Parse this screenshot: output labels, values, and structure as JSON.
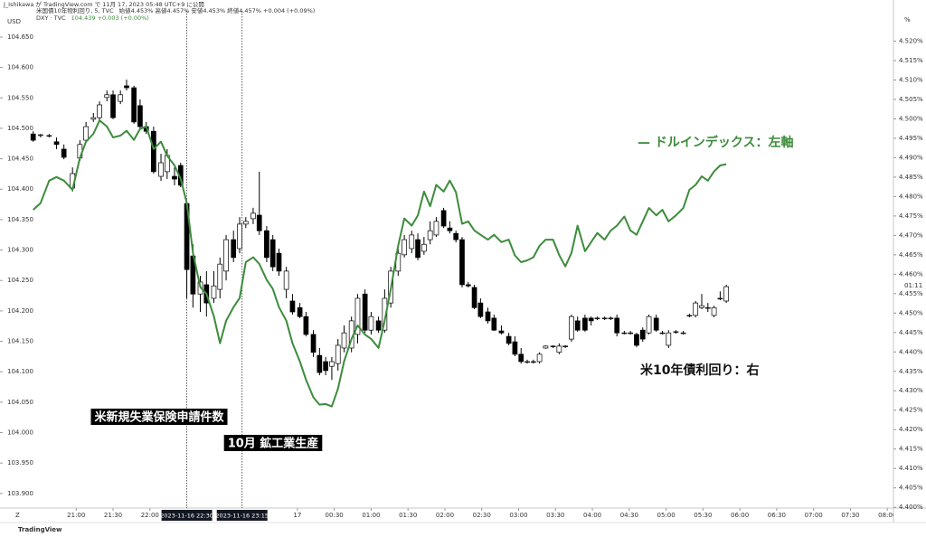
{
  "chart_data": {
    "type": "candlestick",
    "header": "J_Ishikawa が TradingView.com で 11月 17, 2023 05:48 UTC+9 に公開",
    "y_unit": "USD",
    "y2_unit": "%",
    "countdown": "01:11",
    "footer": "TradingView",
    "annotations": [
      {
        "text": "米新規失業保険申請件数",
        "style": "box"
      },
      {
        "text": "10月 鉱工業生産",
        "style": "box"
      },
      {
        "text": "— ドルインデックス：左軸",
        "style": "green"
      },
      {
        "text": "米10年債利回り：右",
        "style": "plain"
      }
    ],
    "markers": [
      {
        "x": 1350,
        "label": "2023-11-16  22:30"
      },
      {
        "x": 1395,
        "label": "2023-11-16  23:15"
      }
    ],
    "xlim": [
      1198,
      1925
    ],
    "xticks": [
      {
        "value": 1260,
        "label": "21:00"
      },
      {
        "value": 1290,
        "label": "21:30"
      },
      {
        "value": 1320,
        "label": "22:00"
      },
      {
        "value": 1440,
        "label": "17"
      },
      {
        "value": 1470,
        "label": "00:30"
      },
      {
        "value": 1500,
        "label": "01:00"
      },
      {
        "value": 1530,
        "label": "01:30"
      },
      {
        "value": 1560,
        "label": "02:00"
      },
      {
        "value": 1590,
        "label": "02:30"
      },
      {
        "value": 1620,
        "label": "03:00"
      },
      {
        "value": 1650,
        "label": "03:30"
      },
      {
        "value": 1680,
        "label": "04:00"
      },
      {
        "value": 1710,
        "label": "04:30"
      },
      {
        "value": 1740,
        "label": "05:00"
      },
      {
        "value": 1770,
        "label": "05:30"
      },
      {
        "value": 1800,
        "label": "06:00"
      },
      {
        "value": 1830,
        "label": "06:30"
      },
      {
        "value": 1860,
        "label": "07:00"
      },
      {
        "value": 1890,
        "label": "07:30"
      },
      {
        "value": 1920,
        "label": "08:00"
      }
    ],
    "ylim": [
      103.876,
      104.693
    ],
    "yticks": [
      {
        "value": 103.9,
        "label": "103.900"
      },
      {
        "value": 103.95,
        "label": "103.950"
      },
      {
        "value": 104.0,
        "label": "104.000"
      },
      {
        "value": 104.05,
        "label": "104.050"
      },
      {
        "value": 104.1,
        "label": "104.100"
      },
      {
        "value": 104.15,
        "label": "104.150"
      },
      {
        "value": 104.2,
        "label": "104.200"
      },
      {
        "value": 104.25,
        "label": "104.250"
      },
      {
        "value": 104.3,
        "label": "104.300"
      },
      {
        "value": 104.35,
        "label": "104.350"
      },
      {
        "value": 104.4,
        "label": "104.400"
      },
      {
        "value": 104.45,
        "label": "104.450"
      },
      {
        "value": 104.5,
        "label": "104.500"
      },
      {
        "value": 104.55,
        "label": "104.550"
      },
      {
        "value": 104.6,
        "label": "104.600"
      },
      {
        "value": 104.65,
        "label": "104.650"
      }
    ],
    "y2lim": [
      4.3998,
      4.5278
    ],
    "y2ticks": [
      {
        "value": 4.4,
        "label": "4.400%"
      },
      {
        "value": 4.405,
        "label": "4.405%"
      },
      {
        "value": 4.41,
        "label": "4.410%"
      },
      {
        "value": 4.415,
        "label": "4.415%"
      },
      {
        "value": 4.42,
        "label": "4.420%"
      },
      {
        "value": 4.425,
        "label": "4.425%"
      },
      {
        "value": 4.43,
        "label": "4.430%"
      },
      {
        "value": 4.435,
        "label": "4.435%"
      },
      {
        "value": 4.44,
        "label": "4.440%"
      },
      {
        "value": 4.445,
        "label": "4.445%"
      },
      {
        "value": 4.45,
        "label": "4.450%"
      },
      {
        "value": 4.455,
        "label": "4.455%"
      },
      {
        "value": 4.46,
        "label": "4.460%"
      },
      {
        "value": 4.465,
        "label": "4.465%"
      },
      {
        "value": 4.47,
        "label": "4.470%"
      },
      {
        "value": 4.475,
        "label": "4.475%"
      },
      {
        "value": 4.48,
        "label": "4.480%"
      },
      {
        "value": 4.485,
        "label": "4.485%"
      },
      {
        "value": 4.49,
        "label": "4.490%"
      },
      {
        "value": 4.495,
        "label": "4.495%"
      },
      {
        "value": 4.5,
        "label": "4.500%"
      },
      {
        "value": 4.505,
        "label": "4.505%"
      },
      {
        "value": 4.51,
        "label": "4.510%"
      },
      {
        "value": 4.515,
        "label": "4.515%"
      },
      {
        "value": 4.52,
        "label": "4.520%"
      }
    ],
    "x": [
      1225,
      1231,
      1238,
      1244,
      1250,
      1257,
      1263,
      1268,
      1274,
      1279,
      1285,
      1290,
      1296,
      1301,
      1307,
      1312,
      1317,
      1323,
      1329,
      1334,
      1340,
      1345,
      1350,
      1355,
      1361,
      1366,
      1372,
      1377,
      1382,
      1388,
      1393,
      1398,
      1404,
      1409,
      1415,
      1420,
      1425,
      1431,
      1436,
      1442,
      1447,
      1453,
      1458,
      1463,
      1468,
      1473,
      1478,
      1484,
      1489,
      1495,
      1500,
      1506,
      1511,
      1516,
      1522,
      1527,
      1533,
      1538,
      1543,
      1548,
      1553,
      1559,
      1564,
      1569,
      1574,
      1579,
      1584,
      1589,
      1595,
      1600,
      1606,
      1612,
      1617,
      1622,
      1627,
      1632,
      1637,
      1642,
      1648,
      1653,
      1658,
      1663,
      1668,
      1674,
      1679,
      1684,
      1690,
      1695,
      1700,
      1706,
      1711,
      1716,
      1721,
      1726,
      1732,
      1737,
      1742,
      1748,
      1754,
      1759,
      1764,
      1769,
      1774,
      1779,
      1784,
      1789
    ],
    "series": [
      {
        "name": "米国債10年物利回り, 5, TVC",
        "info": "始値4.453% 高値4.457% 安値4.453% 終値4.457% +0.004 (+0.09%)",
        "type": "candlestick",
        "axis": "y2",
        "up_color": "#ffffff",
        "down_color": "#000000",
        "border_color": "#000000",
        "ohlc": [
          [
            4.4961,
            4.4968,
            4.4941,
            4.4945
          ],
          [
            4.4957,
            4.4961,
            4.4952,
            4.4959
          ],
          [
            4.4957,
            4.4961,
            4.4952,
            4.4957
          ],
          [
            4.4941,
            4.4952,
            4.4922,
            4.4934
          ],
          [
            4.4922,
            4.4934,
            4.4896,
            4.4901
          ],
          [
            4.4822,
            4.4875,
            4.4813,
            4.4859
          ],
          [
            4.4899,
            4.4945,
            4.4892,
            4.4934
          ],
          [
            4.4945,
            4.4992,
            4.4938,
            4.498
          ],
          [
            4.4999,
            4.5015,
            4.4992,
            4.5003
          ],
          [
            4.5003,
            4.5045,
            4.4994,
            4.5036
          ],
          [
            4.5055,
            4.5073,
            4.5045,
            4.5062
          ],
          [
            4.5062,
            4.5073,
            4.4999,
            4.5003
          ],
          [
            4.5045,
            4.5073,
            4.5038,
            4.5062
          ],
          [
            4.5085,
            4.5101,
            4.5073,
            4.508
          ],
          [
            4.508,
            4.5085,
            4.4987,
            4.4992
          ],
          [
            4.5034,
            4.505,
            4.4975,
            4.498
          ],
          [
            4.498,
            4.4992,
            4.4961,
            4.4968
          ],
          [
            4.4968,
            4.498,
            4.4859,
            4.4864
          ],
          [
            4.4852,
            4.491,
            4.484,
            4.4887
          ],
          [
            4.4864,
            4.4922,
            4.4845,
            4.4906
          ],
          [
            4.4852,
            4.4875,
            4.4829,
            4.4845
          ],
          [
            4.488,
            4.4887,
            4.4824,
            4.4829
          ],
          [
            4.4782,
            4.4789,
            4.4538,
            4.4612
          ],
          [
            4.4647,
            4.4677,
            4.4514,
            4.4549
          ],
          [
            4.4549,
            4.4596,
            4.4503,
            4.458
          ],
          [
            4.4573,
            4.4608,
            4.4491,
            4.4526
          ],
          [
            4.4538,
            4.4608,
            4.4526,
            4.457
          ],
          [
            4.4561,
            4.4643,
            4.4538,
            4.4626
          ],
          [
            4.4608,
            4.4701,
            4.4584,
            4.4689
          ],
          [
            4.4689,
            4.4712,
            4.4631,
            4.4643
          ],
          [
            4.4666,
            4.4747,
            4.4654,
            4.4729
          ],
          [
            4.4729,
            4.4747,
            4.4719,
            4.4736
          ],
          [
            4.4743,
            4.4771,
            4.4729,
            4.4757
          ],
          [
            4.4752,
            4.4864,
            4.4701,
            4.4712
          ],
          [
            4.4712,
            4.4724,
            4.4631,
            4.4643
          ],
          [
            4.4689,
            4.4701,
            4.4608,
            4.4619
          ],
          [
            4.4654,
            4.4666,
            4.4596,
            4.4608
          ],
          [
            4.4561,
            4.4619,
            4.4538,
            4.4608
          ],
          [
            4.4531,
            4.4549,
            4.4496,
            4.4503
          ],
          [
            4.4514,
            4.4526,
            4.4487,
            4.4491
          ],
          [
            4.4491,
            4.4503,
            4.444,
            4.4445
          ],
          [
            4.4445,
            4.4456,
            4.4387,
            4.4399
          ],
          [
            4.4391,
            4.441,
            4.434,
            4.4347
          ],
          [
            4.4375,
            4.4387,
            4.434,
            4.4352
          ],
          [
            4.4363,
            4.4387,
            4.4328,
            4.4375
          ],
          [
            4.437,
            4.4433,
            4.4352,
            4.4417
          ],
          [
            4.441,
            4.4468,
            4.4399,
            4.4449
          ],
          [
            4.441,
            4.4491,
            4.4399,
            4.448
          ],
          [
            4.4445,
            4.4549,
            4.4422,
            4.4538
          ],
          [
            4.4549,
            4.4561,
            4.4449,
            4.4456
          ],
          [
            4.4456,
            4.4503,
            4.4445,
            4.4491
          ],
          [
            4.448,
            4.4491,
            4.4449,
            4.4456
          ],
          [
            4.4456,
            4.4561,
            4.4449,
            4.4538
          ],
          [
            4.4526,
            4.4619,
            4.4514,
            4.4608
          ],
          [
            4.4608,
            4.4666,
            4.4596,
            4.4654
          ],
          [
            4.465,
            4.4701,
            4.4643,
            4.4689
          ],
          [
            4.4666,
            4.4712,
            4.4654,
            4.4701
          ],
          [
            4.4689,
            4.4705,
            4.4636,
            4.4643
          ],
          [
            4.4659,
            4.4696,
            4.465,
            4.4677
          ],
          [
            4.4689,
            4.4736,
            4.4677,
            4.4712
          ],
          [
            4.4701,
            4.4747,
            4.4696,
            4.4736
          ],
          [
            4.4764,
            4.4771,
            4.4719,
            4.4724
          ],
          [
            4.4719,
            4.4736,
            4.4705,
            4.4712
          ],
          [
            4.4705,
            4.4712,
            4.4682,
            4.4689
          ],
          [
            4.4689,
            4.4696,
            4.4566,
            4.4573
          ],
          [
            4.4573,
            4.458,
            4.4566,
            4.457
          ],
          [
            4.4566,
            4.4573,
            4.451,
            4.4514
          ],
          [
            4.4526,
            4.4538,
            4.4487,
            4.4491
          ],
          [
            4.4503,
            4.4514,
            4.4473,
            4.448
          ],
          [
            4.4487,
            4.4496,
            4.4454,
            4.4456
          ],
          [
            4.4454,
            4.4468,
            4.4445,
            4.4449
          ],
          [
            4.444,
            4.4449,
            4.4417,
            4.4422
          ],
          [
            4.4426,
            4.444,
            4.4389,
            4.4394
          ],
          [
            4.4394,
            4.441,
            4.437,
            4.4375
          ],
          [
            4.4375,
            4.438,
            4.437,
            4.4375
          ],
          [
            4.4375,
            4.438,
            4.437,
            4.4375
          ],
          [
            4.4375,
            4.4399,
            4.437,
            4.4394
          ],
          [
            4.441,
            4.4417,
            4.4408,
            4.4415
          ],
          [
            4.4415,
            4.4417,
            4.441,
            4.4415
          ],
          [
            4.4399,
            4.4422,
            4.4394,
            4.4415
          ],
          [
            4.4415,
            4.4417,
            4.441,
            4.4415
          ],
          [
            4.4433,
            4.4496,
            4.4426,
            4.4491
          ],
          [
            4.448,
            4.4491,
            4.4452,
            4.4456
          ],
          [
            4.4487,
            4.4496,
            4.4452,
            4.4456
          ],
          [
            4.4487,
            4.4491,
            4.4468,
            4.448
          ],
          [
            4.4487,
            4.4491,
            4.4482,
            4.4487
          ],
          [
            4.4487,
            4.4491,
            4.4482,
            4.4487
          ],
          [
            4.4487,
            4.4491,
            4.4482,
            4.4487
          ],
          [
            4.4487,
            4.4496,
            4.444,
            4.4449
          ],
          [
            4.4449,
            4.4454,
            4.4445,
            4.4449
          ],
          [
            4.4449,
            4.4454,
            4.4445,
            4.4449
          ],
          [
            4.4445,
            4.4449,
            4.4412,
            4.4417
          ],
          [
            4.4456,
            4.4463,
            4.4426,
            4.4433
          ],
          [
            4.4449,
            4.4496,
            4.4445,
            4.4491
          ],
          [
            4.4487,
            4.4496,
            4.4452,
            4.4456
          ],
          [
            4.4449,
            4.4454,
            4.4445,
            4.4449
          ],
          [
            4.4417,
            4.4456,
            4.441,
            4.4449
          ],
          [
            4.4452,
            4.4456,
            4.4447,
            4.4452
          ],
          [
            4.4449,
            4.4454,
            4.4445,
            4.4449
          ],
          [
            4.4494,
            4.4498,
            4.4489,
            4.4494
          ],
          [
            4.4494,
            4.4531,
            4.4489,
            4.4526
          ],
          [
            4.4514,
            4.4549,
            4.451,
            4.4519
          ],
          [
            4.4514,
            4.4526,
            4.4503,
            4.4514
          ],
          [
            4.4494,
            4.4519,
            4.4489,
            4.4514
          ],
          [
            4.4538,
            4.4556,
            4.4533,
            4.4538
          ],
          [
            4.4531,
            4.4573,
            4.4526,
            4.4568
          ]
        ]
      },
      {
        "name": "DXY · TVC",
        "info": "104.439 +0.003 (+0.00%)",
        "type": "line",
        "axis": "y",
        "color": "#3c8c3c",
        "values": [
          104.366,
          104.377,
          104.414,
          104.42,
          104.414,
          104.399,
          104.451,
          104.478,
          104.491,
          104.513,
          104.503,
          104.485,
          104.488,
          104.496,
          104.481,
          104.499,
          104.503,
          104.466,
          104.478,
          104.455,
          104.439,
          104.417,
          104.377,
          104.295,
          104.239,
          104.228,
          104.191,
          104.147,
          104.184,
          104.206,
          104.221,
          104.28,
          104.288,
          104.277,
          104.251,
          104.236,
          104.206,
          104.184,
          104.147,
          104.117,
          104.087,
          104.058,
          104.046,
          104.047,
          104.043,
          104.072,
          104.117,
          104.154,
          104.176,
          104.161,
          104.154,
          104.139,
          104.184,
          104.236,
          104.307,
          104.352,
          104.34,
          104.357,
          104.396,
          104.372,
          104.407,
          104.396,
          104.414,
          104.395,
          104.343,
          104.347,
          104.332,
          104.325,
          104.317,
          104.325,
          104.313,
          104.317,
          104.291,
          104.28,
          104.283,
          104.288,
          104.307,
          104.317,
          104.317,
          104.292,
          104.273,
          104.295,
          104.34,
          104.298,
          104.313,
          104.328,
          104.317,
          104.332,
          104.34,
          104.355,
          104.332,
          104.325,
          104.347,
          104.369,
          104.357,
          104.366,
          104.347,
          104.357,
          104.369,
          104.399,
          104.407,
          104.421,
          104.414,
          104.429,
          104.439,
          104.441
        ]
      }
    ]
  }
}
